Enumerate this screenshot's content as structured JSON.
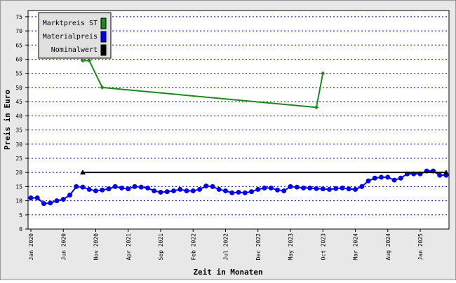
{
  "chart_data": {
    "type": "line",
    "x_label": "Zeit in Monaten",
    "y_label": "Preis in Euro",
    "categories": [
      "Jan 2020",
      null,
      null,
      null,
      null,
      "Jun 2020",
      null,
      null,
      null,
      null,
      "Nov 2020",
      null,
      null,
      null,
      null,
      "Apr 2021",
      null,
      null,
      null,
      null,
      "Sep 2021",
      null,
      null,
      null,
      null,
      "Feb 2022",
      null,
      null,
      null,
      null,
      "Jul 2022",
      null,
      null,
      null,
      null,
      "Dec 2022",
      null,
      null,
      null,
      null,
      "May 2023",
      null,
      null,
      null,
      null,
      "Oct 2023",
      null,
      null,
      null,
      null,
      "Mar 2024",
      null,
      null,
      null,
      null,
      "Aug 2024",
      null,
      null,
      null,
      null,
      "Jan 2025",
      null,
      null,
      null,
      null
    ],
    "series": [
      {
        "name": "Marktpreis ST",
        "color": "#1a8a1a",
        "marker": "diamond",
        "values": [
          null,
          null,
          null,
          null,
          null,
          null,
          null,
          null,
          59.5,
          59.5,
          null,
          50,
          null,
          null,
          null,
          null,
          null,
          null,
          null,
          null,
          null,
          null,
          null,
          null,
          null,
          null,
          null,
          null,
          null,
          null,
          null,
          null,
          null,
          null,
          null,
          null,
          null,
          null,
          null,
          null,
          null,
          null,
          null,
          null,
          43,
          55,
          null,
          null,
          null,
          null,
          null,
          null,
          null,
          null,
          null,
          null,
          null,
          null,
          null,
          null,
          null,
          null,
          null,
          null,
          null
        ]
      },
      {
        "name": "Materialpreis",
        "color": "#0000ee",
        "marker": "circle",
        "values": [
          11,
          11,
          9,
          9.2,
          10,
          10.5,
          12,
          15,
          14.8,
          14,
          13.5,
          13.8,
          14.2,
          15,
          14.5,
          14.2,
          15,
          14.8,
          14.5,
          13.5,
          13,
          13.2,
          13.5,
          14,
          13.5,
          13.5,
          14,
          15.2,
          15,
          14,
          13.5,
          12.8,
          13,
          12.8,
          13.2,
          14,
          14.5,
          14.5,
          13.8,
          13.5,
          15,
          14.8,
          14.5,
          14.5,
          14.3,
          14.2,
          14,
          14.3,
          14.5,
          14.2,
          14,
          15,
          17,
          18,
          18.3,
          18.3,
          17.3,
          18,
          19.5,
          19.5,
          19.5,
          20.5,
          20.5,
          19,
          19
        ]
      },
      {
        "name": "Nominalwert",
        "color": "#000000",
        "marker": "triangle",
        "values": [
          null,
          null,
          null,
          null,
          null,
          null,
          null,
          null,
          20,
          null,
          null,
          null,
          null,
          null,
          null,
          null,
          null,
          null,
          null,
          null,
          null,
          null,
          null,
          null,
          null,
          null,
          null,
          null,
          null,
          null,
          null,
          null,
          null,
          null,
          null,
          null,
          null,
          null,
          null,
          null,
          null,
          null,
          null,
          null,
          null,
          null,
          null,
          null,
          null,
          null,
          null,
          null,
          null,
          null,
          null,
          null,
          null,
          null,
          null,
          null,
          null,
          null,
          null,
          null,
          20
        ]
      }
    ],
    "ylim": [
      0,
      77.2
    ],
    "yticks": [
      0,
      5,
      10,
      15,
      20,
      25,
      30,
      35,
      40,
      45,
      50,
      55,
      60,
      65,
      70,
      75
    ],
    "grid": true,
    "legend": "top-left"
  }
}
